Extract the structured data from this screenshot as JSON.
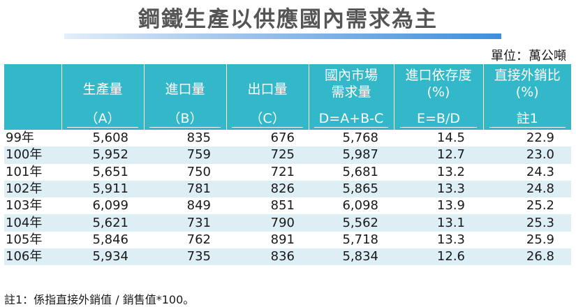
{
  "title": "鋼鐵生產以供應國內需求為主",
  "unit": "單位：萬公噸",
  "columns": [
    {
      "name": "",
      "sub": ""
    },
    {
      "name": "生產量",
      "sub": "（A）"
    },
    {
      "name": "進口量",
      "sub": "（B）"
    },
    {
      "name": "出口量",
      "sub": "（C）"
    },
    {
      "name": "國內市場\n需求量",
      "sub": "D=A+B-C"
    },
    {
      "name": "進口依存度\n(%)",
      "sub": "E=B/D"
    },
    {
      "name": "直接外銷比\n(%)",
      "sub": "註1"
    }
  ],
  "rows": [
    {
      "year": "99年",
      "a": "5,608",
      "b": "835",
      "c": "676",
      "d": "5,768",
      "e": "14.5",
      "f": "22.9"
    },
    {
      "year": "100年",
      "a": "5,952",
      "b": "759",
      "c": "725",
      "d": "5,987",
      "e": "12.7",
      "f": "23.0"
    },
    {
      "year": "101年",
      "a": "5,651",
      "b": "750",
      "c": "721",
      "d": "5,681",
      "e": "13.2",
      "f": "24.3"
    },
    {
      "year": "102年",
      "a": "5,911",
      "b": "781",
      "c": "826",
      "d": "5,865",
      "e": "13.3",
      "f": "24.8"
    },
    {
      "year": "103年",
      "a": "6,099",
      "b": "849",
      "c": "851",
      "d": "6,098",
      "e": "13.9",
      "f": "25.2"
    },
    {
      "year": "104年",
      "a": "5,621",
      "b": "731",
      "c": "790",
      "d": "5,562",
      "e": "13.1",
      "f": "25.3"
    },
    {
      "year": "105年",
      "a": "5,846",
      "b": "762",
      "c": "891",
      "d": "5,718",
      "e": "13.3",
      "f": "25.9"
    },
    {
      "year": "106年",
      "a": "5,934",
      "b": "735",
      "c": "836",
      "d": "5,834",
      "e": "12.6",
      "f": "26.8"
    }
  ],
  "note": "註1：係指直接外銷值 / 銷售值*100。",
  "colors": {
    "header_bg": "#33b8c9",
    "stripe": "#ddeef5",
    "title_bar_end": "#3d8fdc"
  }
}
